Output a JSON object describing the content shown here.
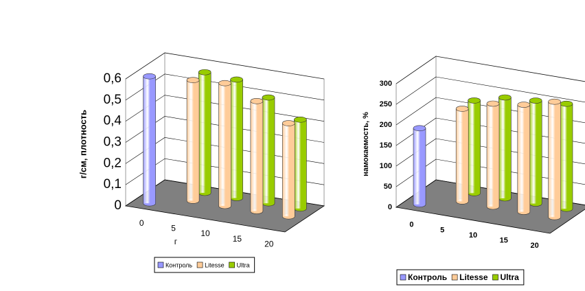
{
  "chart_data": [
    {
      "type": "bar",
      "y_label": "г/см, плотность",
      "x_label": "г",
      "categories": [
        "0",
        "5",
        "10",
        "15",
        "20"
      ],
      "series": [
        {
          "name": "Контроль",
          "color": "#9999ff",
          "values": [
            0.6,
            null,
            null,
            null,
            null
          ]
        },
        {
          "name": "Litesse",
          "color": "#ffcc99",
          "values": [
            null,
            0.57,
            0.58,
            0.52,
            0.44
          ]
        },
        {
          "name": "Ultra",
          "color": "#99cc00",
          "values": [
            null,
            0.57,
            0.56,
            0.5,
            0.42
          ]
        }
      ],
      "ylim": [
        0,
        0.6
      ],
      "yticks": [
        0,
        {
          "value": 0.1,
          "label": "0,1"
        },
        {
          "value": 0.2,
          "label": "0,2"
        },
        {
          "value": 0.3,
          "label": "0,3"
        },
        {
          "value": 0.4,
          "label": "0,4"
        },
        {
          "value": 0.5,
          "label": "0,5"
        },
        {
          "value": 0.6,
          "label": "0,6"
        }
      ],
      "grid": true
    },
    {
      "type": "bar",
      "y_label": "намокаемость, %",
      "categories": [
        "0",
        "5",
        "10",
        "15",
        "20"
      ],
      "series": [
        {
          "name": "Контроль",
          "color": "#9999ff",
          "values": [
            185,
            null,
            null,
            null,
            null
          ]
        },
        {
          "name": "Litesse",
          "color": "#ffcc99",
          "values": [
            null,
            225,
            250,
            260,
            280
          ]
        },
        {
          "name": "Ultra",
          "color": "#99cc00",
          "values": [
            null,
            225,
            245,
            250,
            255
          ]
        }
      ],
      "ylim": [
        0,
        300
      ],
      "yticks": [
        0,
        50,
        100,
        150,
        200,
        250,
        300
      ],
      "grid": true
    }
  ]
}
